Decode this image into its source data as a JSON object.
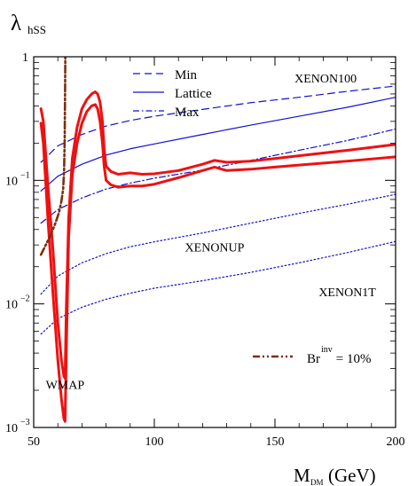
{
  "chart_data": {
    "type": "line",
    "title": "",
    "ylabel": "λ",
    "ylabel_sub": "hSS",
    "xlabel": "M",
    "xlabel_sub": "DM",
    "xlabel_unit": "(GeV)",
    "xlim": [
      50,
      200
    ],
    "ylim": [
      0.001,
      1
    ],
    "yscale": "log",
    "grid": false,
    "x_ticks": [
      {
        "v": 50,
        "label": "50"
      },
      {
        "v": 100,
        "label": "100"
      },
      {
        "v": 150,
        "label": "150"
      },
      {
        "v": 200,
        "label": "200"
      }
    ],
    "y_ticks": [
      {
        "v": 1,
        "base": "1",
        "exp": ""
      },
      {
        "v": 0.1,
        "base": "10",
        "exp": "−1"
      },
      {
        "v": 0.01,
        "base": "10",
        "exp": "−2"
      },
      {
        "v": 0.001,
        "base": "10",
        "exp": "−3"
      }
    ],
    "legend": {
      "placement": "top-left",
      "entries": [
        {
          "label": "Min",
          "style": "dashed",
          "color": "#1010cc"
        },
        {
          "label": "Lattice",
          "style": "solid",
          "color": "#1010cc"
        },
        {
          "label": "Max",
          "style": "dashdot",
          "color": "#1010cc"
        }
      ]
    },
    "br_legend": {
      "base": "Br",
      "sup": "inv",
      "rest": " = 10%",
      "color": "#7a3010",
      "style": "dashdotdot",
      "placement": "bottom-right"
    },
    "annotations": [
      {
        "text": "XENON100",
        "x": 171,
        "y": 0.62
      },
      {
        "text": "XENONUP",
        "x": 125,
        "y": 0.0265
      },
      {
        "text": "XENON1T",
        "x": 180,
        "y": 0.0115
      },
      {
        "text": "WMAP",
        "x": 63,
        "y": 0.00205
      }
    ],
    "series": [
      {
        "kind": "xenon",
        "style": "dashed",
        "color": "#1010cc",
        "x": [
          53,
          60,
          70,
          80,
          90,
          100,
          120,
          140,
          160,
          180,
          200
        ],
        "y": [
          0.14,
          0.19,
          0.235,
          0.275,
          0.305,
          0.33,
          0.375,
          0.425,
          0.47,
          0.525,
          0.58
        ]
      },
      {
        "kind": "xenon",
        "style": "solid",
        "color": "#1010cc",
        "x": [
          53,
          60,
          70,
          80,
          90,
          100,
          120,
          140,
          160,
          180,
          200
        ],
        "y": [
          0.082,
          0.108,
          0.135,
          0.16,
          0.18,
          0.197,
          0.235,
          0.28,
          0.33,
          0.39,
          0.47
        ]
      },
      {
        "kind": "xenon",
        "style": "dashdot",
        "color": "#1010cc",
        "x": [
          53,
          60,
          70,
          80,
          90,
          100,
          120,
          140,
          160,
          180,
          200
        ],
        "y": [
          0.045,
          0.058,
          0.072,
          0.085,
          0.095,
          0.104,
          0.121,
          0.145,
          0.175,
          0.21,
          0.26
        ]
      },
      {
        "kind": "xenon",
        "style": "dotted",
        "color": "#1010cc",
        "x": [
          53,
          60,
          70,
          80,
          90,
          100,
          120,
          140,
          160,
          180,
          200
        ],
        "y": [
          0.012,
          0.0168,
          0.0215,
          0.0255,
          0.029,
          0.0318,
          0.0375,
          0.045,
          0.054,
          0.064,
          0.077
        ]
      },
      {
        "kind": "xenon",
        "style": "dotted",
        "color": "#1010cc",
        "x": [
          53,
          60,
          70,
          80,
          90,
          100,
          120,
          140,
          160,
          180,
          200
        ],
        "y": [
          0.0057,
          0.0076,
          0.0094,
          0.0109,
          0.0122,
          0.0134,
          0.0154,
          0.018,
          0.0215,
          0.026,
          0.032
        ]
      },
      {
        "kind": "wmap",
        "style": "solid",
        "color": "#ee1111",
        "x": [
          53,
          54,
          56,
          58,
          60,
          61.5,
          62.5,
          63,
          63.5,
          64.5,
          66,
          68,
          70,
          72,
          74,
          75.5,
          76.5,
          77.5,
          78.5,
          79.2,
          80,
          82,
          85,
          90,
          95,
          100,
          110,
          120,
          125,
          130,
          140,
          150,
          160,
          180,
          200
        ],
        "y": [
          0.38,
          0.3,
          0.085,
          0.027,
          0.007,
          0.0035,
          0.0026,
          0.0025,
          0.009,
          0.05,
          0.15,
          0.27,
          0.38,
          0.45,
          0.5,
          0.52,
          0.5,
          0.43,
          0.3,
          0.18,
          0.13,
          0.118,
          0.112,
          0.115,
          0.112,
          0.113,
          0.12,
          0.135,
          0.145,
          0.14,
          0.143,
          0.15,
          0.158,
          0.175,
          0.195
        ]
      },
      {
        "kind": "wmap",
        "style": "solid",
        "color": "#ee1111",
        "x": [
          53,
          54,
          56,
          58,
          60,
          61.5,
          62.5,
          63,
          63.5,
          64.5,
          66,
          68,
          70,
          72,
          74,
          75.5,
          76.5,
          77.5,
          78.5,
          79.2,
          80,
          82,
          85,
          90,
          95,
          100,
          110,
          120,
          125,
          130,
          140,
          150,
          160,
          180,
          200
        ],
        "y": [
          0.29,
          0.2,
          0.045,
          0.012,
          0.0035,
          0.0017,
          0.00118,
          0.00112,
          0.004,
          0.035,
          0.11,
          0.2,
          0.29,
          0.36,
          0.4,
          0.41,
          0.38,
          0.3,
          0.2,
          0.13,
          0.1,
          0.092,
          0.088,
          0.09,
          0.09,
          0.093,
          0.105,
          0.12,
          0.128,
          0.12,
          0.123,
          0.128,
          0.133,
          0.143,
          0.155
        ]
      },
      {
        "kind": "br",
        "style": "dashdotdot",
        "color": "#7a3010",
        "x": [
          53,
          55,
          57,
          59,
          60.5,
          61.5,
          62.2,
          62.6,
          62.85,
          63.0,
          63.1
        ],
        "y": [
          0.025,
          0.03,
          0.036,
          0.045,
          0.055,
          0.068,
          0.085,
          0.12,
          0.22,
          0.5,
          1.0
        ]
      }
    ]
  }
}
